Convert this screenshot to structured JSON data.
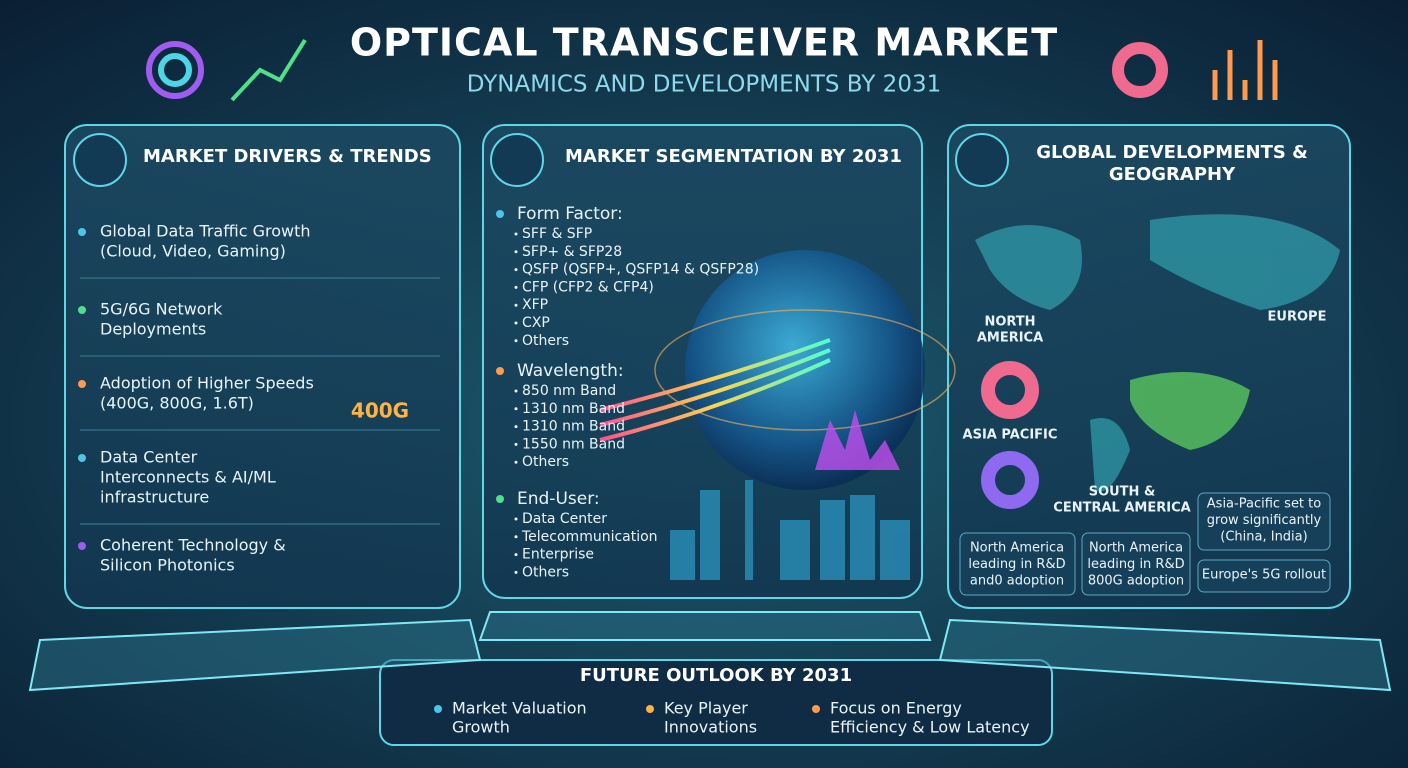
{
  "header": {
    "title": "OPTICAL TRANSCEIVER MARKET",
    "subtitle": "DYNAMICS AND DEVELOPMENTS BY 2031"
  },
  "drivers": {
    "title": "MARKET DRIVERS & TRENDS",
    "items": [
      [
        "Global Data Traffic Growth",
        "(Cloud, Video, Gaming)"
      ],
      [
        "5G/6G Network",
        "Deployments"
      ],
      [
        "Adoption of Higher Speeds",
        "(400G, 800G, 1.6T)"
      ],
      [
        "Data Center",
        "Interconnects & AI/ML",
        "infrastructure"
      ],
      [
        "Coherent Technology &",
        "Silicon Photonics"
      ]
    ],
    "badge": "400G"
  },
  "segmentation": {
    "title": "MARKET SEGMENTATION BY 2031",
    "groups": [
      {
        "heading": "Form Factor:",
        "items": [
          "SFF & SFP",
          "SFP+ & SFP28",
          "QSFP (QSFP+, QSFP14 & QSFP28)",
          "CFP (CFP2 & CFP4)",
          "XFP",
          "CXP",
          "Others"
        ]
      },
      {
        "heading": "Wavelength:",
        "items": [
          "850 nm Band",
          "1310 nm Band",
          "1310 nm Band",
          "1550 nm Band",
          "Others"
        ]
      },
      {
        "heading": "End-User:",
        "items": [
          "Data Center",
          "Telecommunication",
          "Enterprise",
          "Others"
        ]
      }
    ]
  },
  "geography": {
    "title": [
      "GLOBAL DEVELOPMENTS &",
      "GEOGRAPHY"
    ],
    "regions": [
      [
        "NORTH",
        "AMERICA"
      ],
      [
        "EUROPE"
      ],
      [
        "ASIA PACIFIC"
      ],
      [
        "SOUTH &",
        "CENTRAL AMERICA"
      ]
    ],
    "notes": [
      [
        "North America",
        "leading in R&D",
        "and0 adoption"
      ],
      [
        "North America",
        "leading in R&D",
        "800G adoption"
      ],
      [
        "Asia-Pacific set to",
        "grow significantly",
        "(China, India)"
      ],
      [
        "Europe's 5G rollout"
      ]
    ]
  },
  "outlook": {
    "title": "FUTURE OUTLOOK BY 2031",
    "items": [
      [
        "Market Valuation",
        "Growth"
      ],
      [
        "Key Player",
        "Innovations"
      ],
      [
        "Focus on Energy",
        "Efficiency & Low Latency"
      ]
    ]
  }
}
